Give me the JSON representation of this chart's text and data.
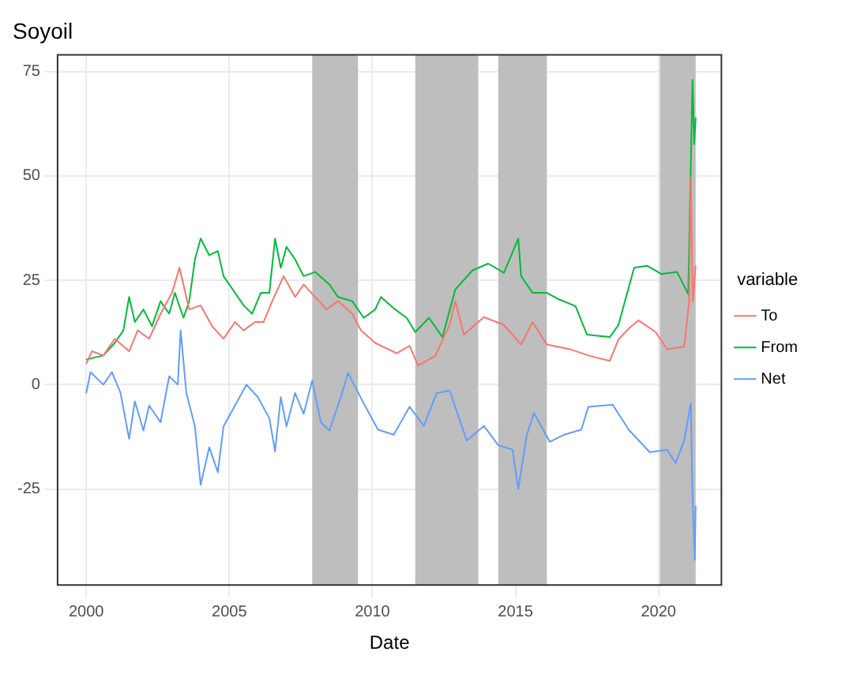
{
  "chart_data": {
    "type": "line",
    "title": "Soyoil",
    "xlabel": "Date",
    "legend_title": "variable",
    "legend": "right",
    "grid": true,
    "marker": "none",
    "line_style": "solid",
    "xlim": [
      1999,
      2022.2
    ],
    "xticks": [
      2000,
      2005,
      2010,
      2015,
      2020
    ],
    "ylim": [
      -48,
      79
    ],
    "yticks": [
      -25,
      0,
      25,
      50,
      75
    ],
    "bands": [
      {
        "axis": "x",
        "from": 2007.9,
        "to": 2009.5,
        "color": "#bebebe"
      },
      {
        "axis": "x",
        "from": 2011.5,
        "to": 2013.7,
        "color": "#bebebe"
      },
      {
        "axis": "x",
        "from": 2014.4,
        "to": 2016.1,
        "color": "#bebebe"
      },
      {
        "axis": "x",
        "from": 2020.05,
        "to": 2021.3,
        "color": "#bebebe"
      }
    ],
    "series": [
      {
        "name": "To",
        "color": "#f8766d",
        "x": [
          2000.0,
          2000.2,
          2000.6,
          2001.0,
          2001.5,
          2001.8,
          2002.2,
          2002.6,
          2003.0,
          2003.26,
          2003.6,
          2004.0,
          2004.4,
          2004.8,
          2005.2,
          2005.5,
          2005.9,
          2006.2,
          2006.5,
          2006.9,
          2007.3,
          2007.6,
          2008.0,
          2008.4,
          2008.8,
          2009.3,
          2009.6,
          2010.1,
          2010.85,
          2011.3,
          2011.6,
          2012.2,
          2012.7,
          2012.9,
          2013.2,
          2013.9,
          2014.6,
          2015.2,
          2015.6,
          2016.1,
          2016.9,
          2017.6,
          2018.3,
          2018.6,
          2019.0,
          2019.3,
          2019.9,
          2020.3,
          2020.9,
          2021.07,
          2021.13,
          2021.2,
          2021.3
        ],
        "values": [
          5,
          8,
          7,
          11,
          8,
          13,
          11,
          17,
          22,
          28,
          18,
          19,
          14,
          11,
          15,
          13,
          15,
          15,
          20,
          26,
          21,
          24,
          21,
          18,
          20,
          17,
          13,
          10,
          7.5,
          9.3,
          4.6,
          6.9,
          14.3,
          20,
          12,
          16.2,
          14.3,
          9.6,
          15,
          9.6,
          8.5,
          6.9,
          5.7,
          10.8,
          13.7,
          15.4,
          12.6,
          8.5,
          9.1,
          19.8,
          49.6,
          19.8,
          28.5
        ]
      },
      {
        "name": "From",
        "color": "#00ba38",
        "x": [
          2000.0,
          2000.6,
          2001.0,
          2001.3,
          2001.5,
          2001.7,
          2002.0,
          2002.3,
          2002.6,
          2002.9,
          2003.1,
          2003.4,
          2003.6,
          2003.8,
          2004.0,
          2004.3,
          2004.6,
          2004.8,
          2005.2,
          2005.5,
          2005.8,
          2006.1,
          2006.4,
          2006.6,
          2006.8,
          2007.0,
          2007.3,
          2007.6,
          2008.0,
          2008.5,
          2008.8,
          2009.3,
          2009.7,
          2010.1,
          2010.3,
          2010.8,
          2011.2,
          2011.5,
          2011.98,
          2012.45,
          2012.9,
          2013.5,
          2014.05,
          2014.6,
          2015.1,
          2015.2,
          2015.6,
          2016.1,
          2016.5,
          2017.1,
          2017.5,
          2018.3,
          2018.6,
          2019.15,
          2019.6,
          2020.1,
          2020.65,
          2021.04,
          2021.13,
          2021.19,
          2021.25,
          2021.3
        ],
        "values": [
          6,
          7,
          10,
          13,
          21,
          15,
          18,
          14,
          20,
          17,
          22,
          16,
          20,
          30,
          35,
          31,
          32,
          26,
          22,
          19,
          17,
          22,
          22,
          35,
          28,
          33,
          30,
          26,
          27,
          24,
          21,
          20,
          16,
          18,
          21,
          18,
          16,
          12.6,
          16,
          11.4,
          22.8,
          27.4,
          29,
          26.8,
          35,
          26,
          22,
          22,
          20.5,
          18.8,
          12,
          11.4,
          14.3,
          28,
          28.5,
          26.5,
          27,
          21.7,
          53,
          73,
          57.6,
          64
        ]
      },
      {
        "name": "Net",
        "color": "#619cff",
        "x": [
          2000.0,
          2000.15,
          2000.6,
          2000.9,
          2001.2,
          2001.5,
          2001.7,
          2002.0,
          2002.2,
          2002.6,
          2002.9,
          2003.2,
          2003.3,
          2003.5,
          2003.8,
          2004.0,
          2004.3,
          2004.6,
          2004.8,
          2005.2,
          2005.6,
          2006.0,
          2006.4,
          2006.6,
          2006.8,
          2007.0,
          2007.3,
          2007.6,
          2007.9,
          2008.2,
          2008.5,
          2008.9,
          2009.15,
          2009.7,
          2010.2,
          2010.75,
          2011.3,
          2011.8,
          2012.25,
          2012.7,
          2013.3,
          2013.9,
          2014.4,
          2014.9,
          2015.1,
          2015.4,
          2015.65,
          2016.2,
          2016.7,
          2017.3,
          2017.55,
          2018.4,
          2018.96,
          2019.7,
          2020.3,
          2020.6,
          2020.9,
          2021.13,
          2021.19,
          2021.27,
          2021.3
        ],
        "values": [
          -2,
          3,
          0,
          3,
          -2,
          -13,
          -4,
          -11,
          -5,
          -9,
          2,
          0,
          13,
          -2,
          -10,
          -24,
          -15,
          -21,
          -10,
          -5,
          0,
          -3,
          -8,
          -16,
          -3,
          -10,
          -2,
          -7,
          1,
          -9,
          -11,
          -3,
          2.8,
          -4.5,
          -10.8,
          -12,
          -5.3,
          -9.9,
          -2,
          -1.4,
          -13.4,
          -9.9,
          -14.5,
          -15.6,
          -25,
          -12,
          -6.8,
          -13.7,
          -12,
          -10.8,
          -5.3,
          -4.8,
          -10.8,
          -16.2,
          -15.6,
          -18.8,
          -13.4,
          -4.5,
          -26.8,
          -42,
          -29
        ]
      }
    ]
  }
}
